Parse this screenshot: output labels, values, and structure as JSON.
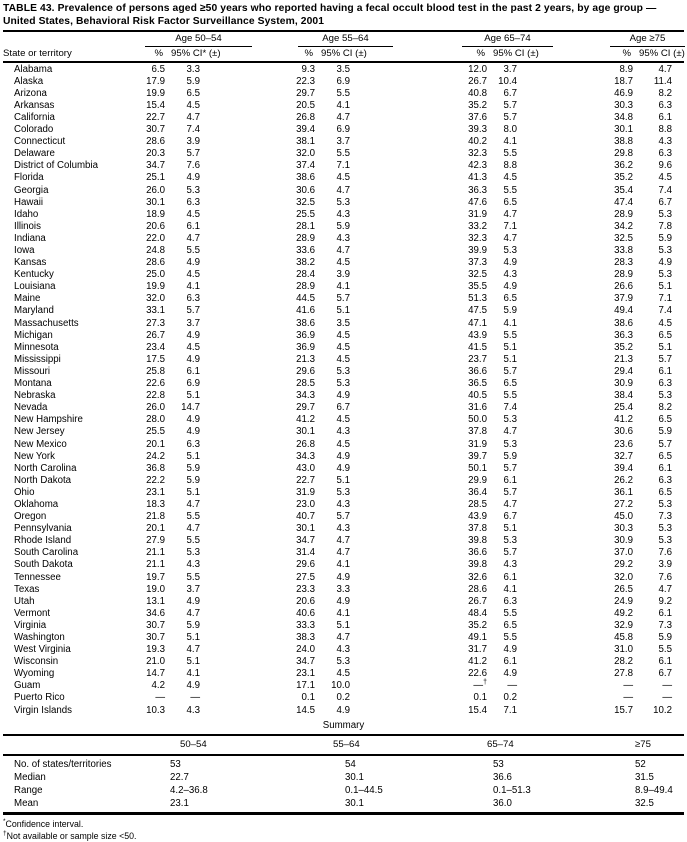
{
  "title": {
    "line1": "TABLE 43. Prevalence of persons aged ≥50 years who reported having a fecal occult blood test in the past 2 years, by age group —",
    "line2": "United States, Behavioral Risk Factor Surveillance System, 2001"
  },
  "table": {
    "state_col_header": "State or territory",
    "age_groups": [
      {
        "label": "Age 50–54",
        "pct": "%",
        "ci": "95% CI* (±)"
      },
      {
        "label": "Age 55–64",
        "pct": "%",
        "ci": "95% CI (±)"
      },
      {
        "label": "Age 65–74",
        "pct": "%",
        "ci": "95% CI (±)"
      },
      {
        "label": "Age ≥75",
        "pct": "%",
        "ci": "95% CI (±)"
      }
    ],
    "rows": [
      {
        "state": "Alabama",
        "values": [
          "6.5",
          "3.3",
          "9.3",
          "3.5",
          "12.0",
          "3.7",
          "8.9",
          "4.7"
        ]
      },
      {
        "state": "Alaska",
        "values": [
          "17.9",
          "5.9",
          "22.3",
          "6.9",
          "26.7",
          "10.4",
          "18.7",
          "11.4"
        ]
      },
      {
        "state": "Arizona",
        "values": [
          "19.9",
          "6.5",
          "29.7",
          "5.5",
          "40.8",
          "6.7",
          "46.9",
          "8.2"
        ]
      },
      {
        "state": "Arkansas",
        "values": [
          "15.4",
          "4.5",
          "20.5",
          "4.1",
          "35.2",
          "5.7",
          "30.3",
          "6.3"
        ]
      },
      {
        "state": "California",
        "values": [
          "22.7",
          "4.7",
          "26.8",
          "4.7",
          "37.6",
          "5.7",
          "34.8",
          "6.1"
        ]
      },
      {
        "state": "Colorado",
        "values": [
          "30.7",
          "7.4",
          "39.4",
          "6.9",
          "39.3",
          "8.0",
          "30.1",
          "8.8"
        ]
      },
      {
        "state": "Connecticut",
        "values": [
          "28.6",
          "3.9",
          "38.1",
          "3.7",
          "40.2",
          "4.1",
          "38.8",
          "4.3"
        ]
      },
      {
        "state": "Delaware",
        "values": [
          "20.3",
          "5.7",
          "32.0",
          "5.5",
          "32.3",
          "5.5",
          "29.8",
          "6.3"
        ]
      },
      {
        "state": "District of Columbia",
        "values": [
          "34.7",
          "7.6",
          "37.4",
          "7.1",
          "42.3",
          "8.8",
          "36.2",
          "9.6"
        ]
      },
      {
        "state": "Florida",
        "values": [
          "25.1",
          "4.9",
          "38.6",
          "4.5",
          "41.3",
          "4.5",
          "35.2",
          "4.5"
        ]
      },
      {
        "state": "Georgia",
        "values": [
          "26.0",
          "5.3",
          "30.6",
          "4.7",
          "36.3",
          "5.5",
          "35.4",
          "7.4"
        ]
      },
      {
        "state": "Hawaii",
        "values": [
          "30.1",
          "6.3",
          "32.5",
          "5.3",
          "47.6",
          "6.5",
          "47.4",
          "6.7"
        ]
      },
      {
        "state": "Idaho",
        "values": [
          "18.9",
          "4.5",
          "25.5",
          "4.3",
          "31.9",
          "4.7",
          "28.9",
          "5.3"
        ]
      },
      {
        "state": "Illinois",
        "values": [
          "20.6",
          "6.1",
          "28.1",
          "5.9",
          "33.2",
          "7.1",
          "34.2",
          "7.8"
        ]
      },
      {
        "state": "Indiana",
        "values": [
          "22.0",
          "4.7",
          "28.9",
          "4.3",
          "32.3",
          "4.7",
          "32.5",
          "5.9"
        ]
      },
      {
        "state": "Iowa",
        "values": [
          "24.8",
          "5.5",
          "33.6",
          "4.7",
          "39.9",
          "5.3",
          "33.8",
          "5.3"
        ]
      },
      {
        "state": "Kansas",
        "values": [
          "28.6",
          "4.9",
          "38.2",
          "4.5",
          "37.3",
          "4.9",
          "28.3",
          "4.9"
        ]
      },
      {
        "state": "Kentucky",
        "values": [
          "25.0",
          "4.5",
          "28.4",
          "3.9",
          "32.5",
          "4.3",
          "28.9",
          "5.3"
        ]
      },
      {
        "state": "Louisiana",
        "values": [
          "19.9",
          "4.1",
          "28.9",
          "4.1",
          "35.5",
          "4.9",
          "26.6",
          "5.1"
        ]
      },
      {
        "state": "Maine",
        "values": [
          "32.0",
          "6.3",
          "44.5",
          "5.7",
          "51.3",
          "6.5",
          "37.9",
          "7.1"
        ]
      },
      {
        "state": "Maryland",
        "values": [
          "33.1",
          "5.7",
          "41.6",
          "5.1",
          "47.5",
          "5.9",
          "49.4",
          "7.4"
        ]
      },
      {
        "state": "Massachusetts",
        "values": [
          "27.3",
          "3.7",
          "38.6",
          "3.5",
          "47.1",
          "4.1",
          "38.6",
          "4.5"
        ]
      },
      {
        "state": "Michigan",
        "values": [
          "26.7",
          "4.9",
          "36.9",
          "4.5",
          "43.9",
          "5.5",
          "36.3",
          "6.5"
        ]
      },
      {
        "state": "Minnesota",
        "values": [
          "23.4",
          "4.5",
          "36.9",
          "4.5",
          "41.5",
          "5.1",
          "35.2",
          "5.1"
        ]
      },
      {
        "state": "Mississippi",
        "values": [
          "17.5",
          "4.9",
          "21.3",
          "4.5",
          "23.7",
          "5.1",
          "21.3",
          "5.7"
        ]
      },
      {
        "state": "Missouri",
        "values": [
          "25.8",
          "6.1",
          "29.6",
          "5.3",
          "36.6",
          "5.7",
          "29.4",
          "6.1"
        ]
      },
      {
        "state": "Montana",
        "values": [
          "22.6",
          "6.9",
          "28.5",
          "5.3",
          "36.5",
          "6.5",
          "30.9",
          "6.3"
        ]
      },
      {
        "state": "Nebraska",
        "values": [
          "22.8",
          "5.1",
          "34.3",
          "4.9",
          "40.5",
          "5.5",
          "38.4",
          "5.3"
        ]
      },
      {
        "state": "Nevada",
        "values": [
          "26.0",
          "14.7",
          "29.7",
          "6.7",
          "31.6",
          "7.4",
          "25.4",
          "8.2"
        ]
      },
      {
        "state": "New Hampshire",
        "values": [
          "28.0",
          "4.9",
          "41.2",
          "4.5",
          "50.0",
          "5.3",
          "41.2",
          "6.5"
        ]
      },
      {
        "state": "New Jersey",
        "values": [
          "25.5",
          "4.9",
          "30.1",
          "4.3",
          "37.8",
          "4.7",
          "30.6",
          "5.9"
        ]
      },
      {
        "state": "New Mexico",
        "values": [
          "20.1",
          "6.3",
          "26.8",
          "4.5",
          "31.9",
          "5.3",
          "23.6",
          "5.7"
        ]
      },
      {
        "state": "New York",
        "values": [
          "24.2",
          "5.1",
          "34.3",
          "4.9",
          "39.7",
          "5.9",
          "32.7",
          "6.5"
        ]
      },
      {
        "state": "North Carolina",
        "values": [
          "36.8",
          "5.9",
          "43.0",
          "4.9",
          "50.1",
          "5.7",
          "39.4",
          "6.1"
        ]
      },
      {
        "state": "North Dakota",
        "values": [
          "22.2",
          "5.9",
          "22.7",
          "5.1",
          "29.9",
          "6.1",
          "26.2",
          "6.3"
        ]
      },
      {
        "state": "Ohio",
        "values": [
          "23.1",
          "5.1",
          "31.9",
          "5.3",
          "36.4",
          "5.7",
          "36.1",
          "6.5"
        ]
      },
      {
        "state": "Oklahoma",
        "values": [
          "18.3",
          "4.7",
          "23.0",
          "4.3",
          "28.5",
          "4.7",
          "27.2",
          "5.3"
        ]
      },
      {
        "state": "Oregon",
        "values": [
          "21.8",
          "5.5",
          "40.7",
          "5.7",
          "43.9",
          "6.7",
          "45.0",
          "7.3"
        ]
      },
      {
        "state": "Pennsylvania",
        "values": [
          "20.1",
          "4.7",
          "30.1",
          "4.3",
          "37.8",
          "5.1",
          "30.3",
          "5.3"
        ]
      },
      {
        "state": "Rhode Island",
        "values": [
          "27.9",
          "5.5",
          "34.7",
          "4.7",
          "39.8",
          "5.3",
          "30.9",
          "5.3"
        ]
      },
      {
        "state": "South Carolina",
        "values": [
          "21.1",
          "5.3",
          "31.4",
          "4.7",
          "36.6",
          "5.7",
          "37.0",
          "7.6"
        ]
      },
      {
        "state": "South Dakota",
        "values": [
          "21.1",
          "4.3",
          "29.6",
          "4.1",
          "39.8",
          "4.3",
          "29.2",
          "3.9"
        ]
      },
      {
        "state": "Tennessee",
        "values": [
          "19.7",
          "5.5",
          "27.5",
          "4.9",
          "32.6",
          "6.1",
          "32.0",
          "7.6"
        ]
      },
      {
        "state": "Texas",
        "values": [
          "19.0",
          "3.7",
          "23.3",
          "3.3",
          "28.6",
          "4.1",
          "26.5",
          "4.7"
        ]
      },
      {
        "state": "Utah",
        "values": [
          "13.1",
          "4.9",
          "20.6",
          "4.9",
          "26.7",
          "6.3",
          "24.9",
          "9.2"
        ]
      },
      {
        "state": "Vermont",
        "values": [
          "34.6",
          "4.7",
          "40.6",
          "4.1",
          "48.4",
          "5.5",
          "49.2",
          "6.1"
        ]
      },
      {
        "state": "Virginia",
        "values": [
          "30.7",
          "5.9",
          "33.3",
          "5.1",
          "35.2",
          "6.5",
          "32.9",
          "7.3"
        ]
      },
      {
        "state": "Washington",
        "values": [
          "30.7",
          "5.1",
          "38.3",
          "4.7",
          "49.1",
          "5.5",
          "45.8",
          "5.9"
        ]
      },
      {
        "state": "West Virginia",
        "values": [
          "19.3",
          "4.7",
          "24.0",
          "4.3",
          "31.7",
          "4.9",
          "31.0",
          "5.5"
        ]
      },
      {
        "state": "Wisconsin",
        "values": [
          "21.0",
          "5.1",
          "34.7",
          "5.3",
          "41.2",
          "6.1",
          "28.2",
          "6.1"
        ]
      },
      {
        "state": "Wyoming",
        "values": [
          "14.7",
          "4.1",
          "23.1",
          "4.5",
          "22.6",
          "4.9",
          "27.8",
          "6.7"
        ]
      },
      {
        "state": "Guam",
        "values": [
          "4.2",
          "4.9",
          "17.1",
          "10.0",
          "—†",
          "—",
          "—",
          "—"
        ]
      },
      {
        "state": "Puerto Rico",
        "values": [
          "—",
          "—",
          "0.1",
          "0.2",
          "0.1",
          "0.2",
          "—",
          "—"
        ]
      },
      {
        "state": "Virgin Islands",
        "values": [
          "10.3",
          "4.3",
          "14.5",
          "4.9",
          "15.4",
          "7.1",
          "15.7",
          "10.2"
        ]
      }
    ]
  },
  "summary": {
    "title": "Summary",
    "col_labels": [
      "50–54",
      "55–64",
      "65–74",
      "≥75"
    ],
    "rows": [
      {
        "label": "No. of states/territories",
        "values": [
          "53",
          "54",
          "53",
          "52"
        ]
      },
      {
        "label": "Median",
        "values": [
          "22.7",
          "30.1",
          "36.6",
          "31.5"
        ]
      },
      {
        "label": "Range",
        "values": [
          "4.2–36.8",
          "0.1–44.5",
          "0.1–51.3",
          "8.9–49.4"
        ]
      },
      {
        "label": "Mean",
        "values": [
          "23.1",
          "30.1",
          "36.0",
          "32.5"
        ]
      }
    ]
  },
  "footnotes": [
    {
      "marker": "*",
      "text": "Confidence interval."
    },
    {
      "marker": "†",
      "text": "Not available or sample size <50."
    }
  ]
}
